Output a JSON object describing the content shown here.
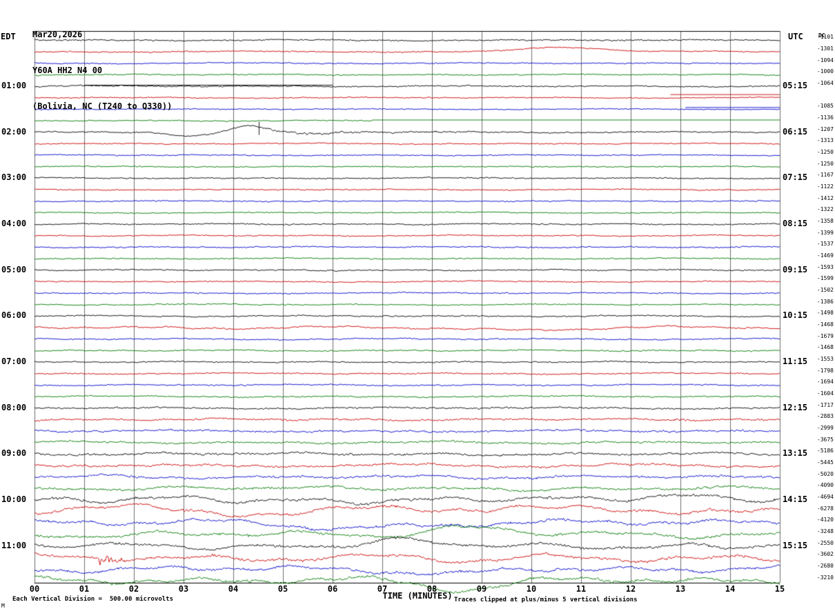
{
  "title": {
    "line1": "Mar20,2026",
    "line2": "Y60A HH2 N4 00",
    "line3": "(Bolivia, NC (T240 to Q330))"
  },
  "axes": {
    "left_label": "EDT",
    "right_label": "UTC",
    "dc_label": "DC",
    "x_axis_title": "TIME (MINUTES)",
    "x_ticks": [
      "00",
      "01",
      "02",
      "03",
      "04",
      "05",
      "06",
      "07",
      "08",
      "09",
      "10",
      "11",
      "12",
      "13",
      "14",
      "15"
    ]
  },
  "left_times": [
    "01:00",
    "02:00",
    "03:00",
    "04:00",
    "05:00",
    "06:00",
    "07:00",
    "08:00",
    "09:00",
    "10:00",
    "11:00"
  ],
  "right_times": [
    "05:15",
    "06:15",
    "07:15",
    "08:15",
    "09:15",
    "10:15",
    "11:15",
    "12:15",
    "13:15",
    "14:15",
    "15:15"
  ],
  "footer": {
    "left_note": "Each Vertical Division =  500.00 microvolts",
    "right_note": "Traces clipped at plus/minus 5 vertical divisions",
    "corner_mark": "M"
  },
  "colors": {
    "trace_cycle": [
      "#000000",
      "#cc0000",
      "#0000cc",
      "#007700"
    ],
    "grid": "#6e6e6e",
    "border": "#000000"
  },
  "chart_data": {
    "type": "line",
    "subtype": "helicorder",
    "minutes_per_row": 15,
    "rows_per_hour": 4,
    "num_rows": 48,
    "start_time_edt": "00:00",
    "microvolts_per_division": 500.0,
    "clip_divisions": 5,
    "dc_offsets": [
      "-1101",
      "-1301",
      "-1094",
      "-1000",
      "-1064",
      "",
      "-1085",
      "-1136",
      "-1207",
      "-1313",
      "-1250",
      "-1250",
      "-1167",
      "-1122",
      "-1412",
      "-1322",
      "-1358",
      "-1399",
      "-1537",
      "-1469",
      "-1593",
      "-1599",
      "-1502",
      "-1386",
      "-1498",
      "-1468",
      "-1679",
      "-1468",
      "-1553",
      "-1798",
      "-1694",
      "-1604",
      "-1717",
      "-2883",
      "-2999",
      "-3675",
      "-5186",
      "-5445",
      "-5020",
      "-4090",
      "-4694",
      "-6278",
      "-4120",
      "-3248",
      "-2550",
      "-3602",
      "-2680",
      "-3210"
    ],
    "rows": [
      {
        "a": 1.7,
        "w": 0.9
      },
      {
        "a": 1.4,
        "w": 0.8
      },
      {
        "a": 1.3,
        "w": 0.7
      },
      {
        "a": 1.3,
        "w": 0.7
      },
      {
        "a": 1.6,
        "w": 0.8
      },
      {
        "a": 1.2,
        "w": 0.6
      },
      {
        "a": 1.2,
        "w": 0.6
      },
      {
        "a": 1.2,
        "w": 0.6
      },
      {
        "a": 1.5,
        "w": 0.8
      },
      {
        "a": 1.3,
        "w": 0.7
      },
      {
        "a": 1.3,
        "w": 0.7
      },
      {
        "a": 1.3,
        "w": 0.7
      },
      {
        "a": 1.4,
        "w": 0.7
      },
      {
        "a": 1.3,
        "w": 0.7
      },
      {
        "a": 1.3,
        "w": 0.7
      },
      {
        "a": 1.3,
        "w": 0.7
      },
      {
        "a": 1.4,
        "w": 0.8
      },
      {
        "a": 1.4,
        "w": 0.8
      },
      {
        "a": 1.4,
        "w": 0.8
      },
      {
        "a": 1.4,
        "w": 0.8
      },
      {
        "a": 1.5,
        "w": 0.8
      },
      {
        "a": 1.4,
        "w": 0.8
      },
      {
        "a": 1.4,
        "w": 0.8
      },
      {
        "a": 1.4,
        "w": 0.8
      },
      {
        "a": 1.5,
        "w": 0.9
      },
      {
        "a": 1.5,
        "w": 2.2
      },
      {
        "a": 1.4,
        "w": 1.0
      },
      {
        "a": 1.4,
        "w": 0.9
      },
      {
        "a": 1.5,
        "w": 0.9
      },
      {
        "a": 1.5,
        "w": 1.0
      },
      {
        "a": 1.5,
        "w": 1.0
      },
      {
        "a": 1.5,
        "w": 1.0
      },
      {
        "a": 1.8,
        "w": 1.2
      },
      {
        "a": 2.2,
        "w": 1.5
      },
      {
        "a": 2.2,
        "w": 1.5
      },
      {
        "a": 2.2,
        "w": 1.8
      },
      {
        "a": 2.6,
        "w": 2.2
      },
      {
        "a": 2.6,
        "w": 2.4
      },
      {
        "a": 2.6,
        "w": 2.6
      },
      {
        "a": 2.6,
        "w": 3.0
      },
      {
        "a": 3.0,
        "w": 5.5
      },
      {
        "a": 3.0,
        "w": 7.5
      },
      {
        "a": 3.0,
        "w": 5.5
      },
      {
        "a": 3.0,
        "w": 5.0
      },
      {
        "a": 3.0,
        "w": 5.0
      },
      {
        "a": 3.0,
        "w": 6.0
      },
      {
        "a": 3.0,
        "w": 5.5
      },
      {
        "a": 3.0,
        "w": 6.0
      }
    ],
    "events": [
      {
        "row": 1,
        "type": "bump",
        "c": 10.6,
        "fw": 1.8,
        "a": 7
      },
      {
        "row": 4,
        "type": "flat",
        "start": 1.0,
        "end": 6.0,
        "dy": -2,
        "mode": "overlay"
      },
      {
        "row": 5,
        "type": "flat",
        "start": 12.8,
        "end": 15,
        "dy": -5,
        "mode": "overlay"
      },
      {
        "row": 6,
        "type": "flat",
        "start": 13.1,
        "end": 15,
        "dy": -3,
        "mode": "overlay"
      },
      {
        "row": 7,
        "type": "flat",
        "start": 6.8,
        "end": 15,
        "dy": -1,
        "mode": "replace"
      },
      {
        "row": 8,
        "type": "bump",
        "c": 3.15,
        "fw": 0.9,
        "a": -5
      },
      {
        "row": 8,
        "type": "bump",
        "c": 4.3,
        "fw": 0.8,
        "a": 9
      },
      {
        "row": 8,
        "type": "spike",
        "at": 4.52,
        "a": 10
      },
      {
        "row": 8,
        "type": "noise",
        "start": 4.6,
        "end": 8.8,
        "a": 2.6
      },
      {
        "row": 8,
        "type": "bump",
        "c": 5.6,
        "fw": 0.7,
        "a": -3
      },
      {
        "row": 25,
        "type": "bump",
        "c": 9.5,
        "fw": 2.6,
        "a": -3
      },
      {
        "row": 40,
        "type": "bump",
        "c": 13.0,
        "fw": 2.4,
        "a": 7
      },
      {
        "row": 41,
        "type": "bump",
        "c": 9.4,
        "fw": 2.4,
        "a": 8
      },
      {
        "row": 41,
        "type": "bump",
        "c": 1.4,
        "fw": 1.8,
        "a": 6
      },
      {
        "row": 42,
        "type": "bump",
        "c": 6.3,
        "fw": 2.2,
        "a": -7
      },
      {
        "row": 43,
        "type": "bump",
        "c": 8.7,
        "fw": 1.8,
        "a": 10
      },
      {
        "row": 44,
        "type": "bump",
        "c": 7.3,
        "fw": 1.5,
        "a": 7
      },
      {
        "row": 45,
        "type": "noise",
        "start": 1.3,
        "end": 1.75,
        "a": 12
      },
      {
        "row": 45,
        "type": "bump",
        "c": 8.8,
        "fw": 1.5,
        "a": -6
      },
      {
        "row": 46,
        "type": "bump",
        "c": 8.5,
        "fw": 1.7,
        "a": -8
      },
      {
        "row": 47,
        "type": "bump",
        "c": 8.6,
        "fw": 1.7,
        "a": -11
      }
    ]
  }
}
